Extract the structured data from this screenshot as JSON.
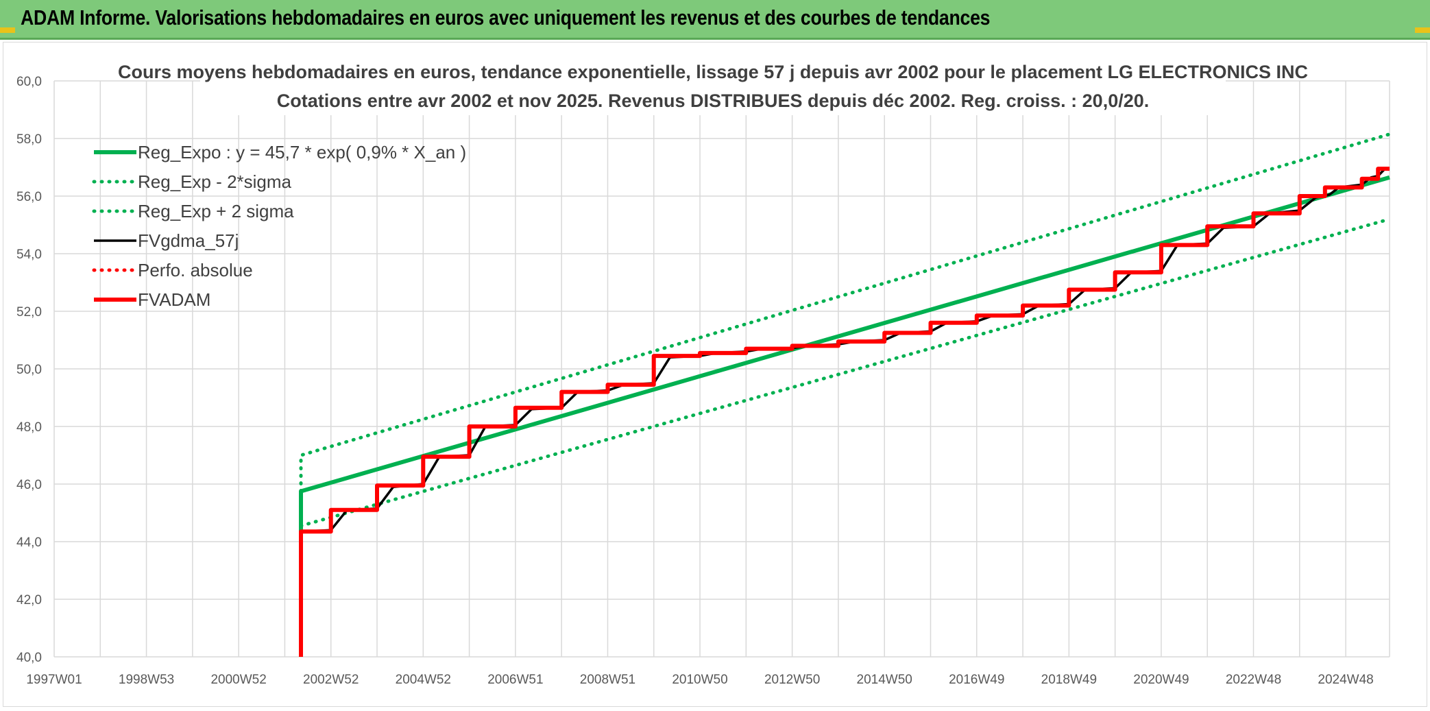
{
  "banner": {
    "title": "ADAM Informe. Valorisations hebdomadaires en euros avec uniquement les revenus et des courbes de tendances"
  },
  "colors": {
    "banner_bg": "#7ec97a",
    "reg_green": "#00b050",
    "fvgdma_black": "#000000",
    "fvadam_red": "#ff0000",
    "grid": "#d9d9d9"
  },
  "chart_data": {
    "type": "line",
    "title_line1": "Cours moyens hebdomadaires en euros, tendance exponentielle, lissage 57 j depuis avr 2002 pour le placement LG ELECTRONICS INC",
    "title_line2": "Cotations entre avr 2002 et nov 2025. Revenus DISTRIBUES depuis déc 2002. Reg. croiss. : 20,0/20.",
    "xlabel": "",
    "ylabel": "",
    "x_range": [
      1997.0,
      2025.95
    ],
    "ylim": [
      40,
      60
    ],
    "y_ticks": [
      "40,0",
      "42,0",
      "44,0",
      "46,0",
      "48,0",
      "50,0",
      "52,0",
      "54,0",
      "56,0",
      "58,0",
      "60,0"
    ],
    "x_tick_labels": [
      {
        "label": "1997W01",
        "x": 1997.0
      },
      {
        "label": "1998W53",
        "x": 1999.0
      },
      {
        "label": "2000W52",
        "x": 2001.0
      },
      {
        "label": "2002W52",
        "x": 2003.0
      },
      {
        "label": "2004W52",
        "x": 2005.0
      },
      {
        "label": "2006W51",
        "x": 2007.0
      },
      {
        "label": "2008W51",
        "x": 2009.0
      },
      {
        "label": "2010W50",
        "x": 2011.0
      },
      {
        "label": "2012W50",
        "x": 2013.0
      },
      {
        "label": "2014W50",
        "x": 2015.0
      },
      {
        "label": "2016W49",
        "x": 2017.0
      },
      {
        "label": "2018W49",
        "x": 2019.0
      },
      {
        "label": "2020W49",
        "x": 2021.0
      },
      {
        "label": "2022W48",
        "x": 2023.0
      },
      {
        "label": "2024W48",
        "x": 2025.0
      }
    ],
    "legend": "top-left",
    "grid": true,
    "series": [
      {
        "name": "Reg_Expo : y = 45,7 * exp( 0,9% *  X_an )",
        "style": "solid-thick",
        "color": "#00b050",
        "points": [
          [
            2002.35,
            40.0
          ],
          [
            2002.35,
            45.75
          ],
          [
            2025.95,
            56.65
          ]
        ]
      },
      {
        "name": "Reg_Exp - 2*sigma",
        "style": "dotted",
        "color": "#00b050",
        "points": [
          [
            2002.35,
            44.55
          ],
          [
            2025.95,
            55.2
          ]
        ]
      },
      {
        "name": "Reg_Exp + 2 sigma",
        "style": "dotted",
        "color": "#00b050",
        "points": [
          [
            2002.35,
            45.75
          ],
          [
            2002.35,
            47.0
          ],
          [
            2025.95,
            58.15
          ]
        ]
      },
      {
        "name": "FVgdma_57j",
        "style": "solid",
        "color": "#000000",
        "points": [
          [
            2002.35,
            40.0
          ],
          [
            2002.35,
            44.35
          ],
          [
            2003.0,
            44.4
          ],
          [
            2003.35,
            45.1
          ],
          [
            2004.0,
            45.15
          ],
          [
            2004.35,
            45.9
          ],
          [
            2005.0,
            46.0
          ],
          [
            2005.35,
            46.95
          ],
          [
            2006.0,
            47.0
          ],
          [
            2006.35,
            48.0
          ],
          [
            2007.0,
            48.05
          ],
          [
            2007.35,
            48.6
          ],
          [
            2008.0,
            48.65
          ],
          [
            2008.35,
            49.2
          ],
          [
            2009.0,
            49.25
          ],
          [
            2009.35,
            49.45
          ],
          [
            2010.0,
            49.5
          ],
          [
            2010.35,
            50.4
          ],
          [
            2011.0,
            50.45
          ],
          [
            2011.35,
            50.55
          ],
          [
            2012.0,
            50.6
          ],
          [
            2012.35,
            50.7
          ],
          [
            2013.0,
            50.72
          ],
          [
            2013.35,
            50.8
          ],
          [
            2014.0,
            50.85
          ],
          [
            2014.35,
            50.95
          ],
          [
            2015.0,
            51.0
          ],
          [
            2015.35,
            51.25
          ],
          [
            2016.0,
            51.3
          ],
          [
            2016.35,
            51.6
          ],
          [
            2017.0,
            51.65
          ],
          [
            2017.35,
            51.85
          ],
          [
            2018.0,
            51.9
          ],
          [
            2018.35,
            52.2
          ],
          [
            2019.0,
            52.25
          ],
          [
            2019.35,
            52.75
          ],
          [
            2020.0,
            52.8
          ],
          [
            2020.35,
            53.35
          ],
          [
            2021.0,
            53.4
          ],
          [
            2021.35,
            54.3
          ],
          [
            2022.0,
            54.35
          ],
          [
            2022.35,
            54.9
          ],
          [
            2023.0,
            54.95
          ],
          [
            2023.35,
            55.4
          ],
          [
            2024.0,
            55.5
          ],
          [
            2024.35,
            55.95
          ],
          [
            2024.65,
            56.05
          ],
          [
            2024.85,
            56.3
          ],
          [
            2025.35,
            56.4
          ],
          [
            2025.55,
            56.65
          ],
          [
            2025.7,
            56.7
          ],
          [
            2025.85,
            56.95
          ],
          [
            2025.95,
            56.95
          ]
        ]
      },
      {
        "name": "Perfo. absolue",
        "style": "dotted",
        "color": "#ff0000",
        "points": []
      },
      {
        "name": "FVADAM",
        "style": "solid-thick",
        "color": "#ff0000",
        "points": [
          [
            2002.35,
            40.0
          ],
          [
            2002.35,
            44.35
          ],
          [
            2003.0,
            44.35
          ],
          [
            2003.0,
            45.1
          ],
          [
            2004.0,
            45.1
          ],
          [
            2004.0,
            45.95
          ],
          [
            2005.0,
            45.95
          ],
          [
            2005.0,
            46.95
          ],
          [
            2006.0,
            46.95
          ],
          [
            2006.0,
            48.0
          ],
          [
            2007.0,
            48.0
          ],
          [
            2007.0,
            48.65
          ],
          [
            2008.0,
            48.65
          ],
          [
            2008.0,
            49.2
          ],
          [
            2009.0,
            49.2
          ],
          [
            2009.0,
            49.45
          ],
          [
            2010.0,
            49.45
          ],
          [
            2010.0,
            50.45
          ],
          [
            2011.0,
            50.45
          ],
          [
            2011.0,
            50.55
          ],
          [
            2012.0,
            50.55
          ],
          [
            2012.0,
            50.7
          ],
          [
            2013.0,
            50.7
          ],
          [
            2013.0,
            50.8
          ],
          [
            2014.0,
            50.8
          ],
          [
            2014.0,
            50.95
          ],
          [
            2015.0,
            50.95
          ],
          [
            2015.0,
            51.25
          ],
          [
            2016.0,
            51.25
          ],
          [
            2016.0,
            51.6
          ],
          [
            2017.0,
            51.6
          ],
          [
            2017.0,
            51.85
          ],
          [
            2018.0,
            51.85
          ],
          [
            2018.0,
            52.2
          ],
          [
            2019.0,
            52.2
          ],
          [
            2019.0,
            52.75
          ],
          [
            2020.0,
            52.75
          ],
          [
            2020.0,
            53.35
          ],
          [
            2021.0,
            53.35
          ],
          [
            2021.0,
            54.3
          ],
          [
            2022.0,
            54.3
          ],
          [
            2022.0,
            54.95
          ],
          [
            2023.0,
            54.95
          ],
          [
            2023.0,
            55.4
          ],
          [
            2024.0,
            55.4
          ],
          [
            2024.0,
            56.0
          ],
          [
            2024.55,
            56.0
          ],
          [
            2024.55,
            56.3
          ],
          [
            2025.35,
            56.3
          ],
          [
            2025.35,
            56.6
          ],
          [
            2025.7,
            56.6
          ],
          [
            2025.7,
            56.95
          ],
          [
            2025.95,
            56.95
          ]
        ]
      }
    ]
  }
}
